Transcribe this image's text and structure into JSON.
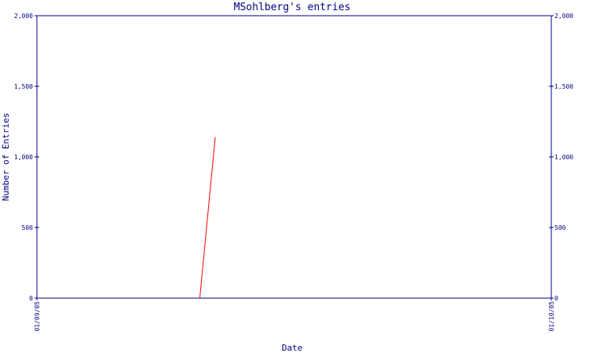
{
  "chart_data": {
    "type": "line",
    "title": "MSohlberg's entries",
    "x_label": "Date",
    "y_label": "Number of Entries",
    "x": [
      9.5,
      10.4
    ],
    "series": [
      {
        "color": "#ff0000",
        "values": [
          0,
          1140
        ]
      }
    ],
    "xlim": [
      0,
      30
    ],
    "xticks": [
      {
        "value": 0,
        "label": "01/09/05"
      },
      {
        "value": 30,
        "label": "01/10/05"
      }
    ],
    "ylim": [
      0,
      2000
    ],
    "yticks": [
      0,
      {
        "value": 500,
        "label": "500"
      },
      {
        "value": 1000,
        "label": "1,000"
      },
      {
        "value": 1500,
        "label": "1,500"
      },
      {
        "value": 2000,
        "label": "2,000"
      }
    ],
    "axis_color": "#000080"
  }
}
